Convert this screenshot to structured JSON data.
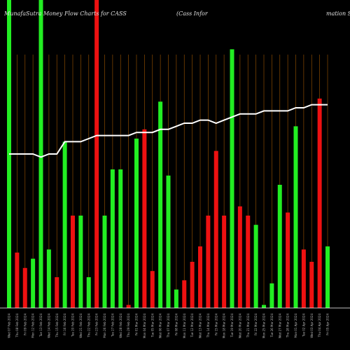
{
  "title_left": "MunafaSutra  Money Flow  Charts for CASS",
  "title_mid": "(Cass Infor",
  "title_right": "mation  S",
  "colors": {
    "background": "#000000",
    "grid": "#8a4a00",
    "up": "#22ee22",
    "down": "#ee1111",
    "line": "#ffffff",
    "baseline": "#ffffff"
  },
  "chart_data": {
    "type": "bar",
    "ylim": [
      0,
      100
    ],
    "bars": [
      {
        "c": "up",
        "v": 100,
        "label": "Wed 07 Feb 2024"
      },
      {
        "c": "down",
        "v": 18,
        "label": "Thu 08 Feb 2024"
      },
      {
        "c": "down",
        "v": 13,
        "label": "Fri 09 Feb 2024"
      },
      {
        "c": "up",
        "v": 16,
        "label": "Mon 12 Feb 2024"
      },
      {
        "c": "up",
        "v": 100,
        "label": "Tue 13 Feb 2024"
      },
      {
        "c": "up",
        "v": 19,
        "label": "Wed 14 Feb 2024"
      },
      {
        "c": "down",
        "v": 10,
        "label": "Thu 15 Feb 2024"
      },
      {
        "c": "up",
        "v": 54,
        "label": "Fri 16 Feb 2024"
      },
      {
        "c": "down",
        "v": 30,
        "label": "Tue 20 Feb 2024"
      },
      {
        "c": "up",
        "v": 30,
        "label": "Wed 21 Feb 2024"
      },
      {
        "c": "up",
        "v": 10,
        "label": "Thu 22 Feb 2024"
      },
      {
        "c": "down",
        "v": 100,
        "label": "Fri 23 Feb 2024"
      },
      {
        "c": "up",
        "v": 30,
        "label": "Mon 26 Feb 2024"
      },
      {
        "c": "up",
        "v": 45,
        "label": "Tue 27 Feb 2024"
      },
      {
        "c": "up",
        "v": 45,
        "label": "Wed 28 Feb 2024"
      },
      {
        "c": "down",
        "v": 1,
        "label": "Thu 29 Feb 2024"
      },
      {
        "c": "up",
        "v": 55,
        "label": "Fri 01 Mar 2024"
      },
      {
        "c": "down",
        "v": 58,
        "label": "Mon 04 Mar 2024"
      },
      {
        "c": "down",
        "v": 12,
        "label": "Tue 05 Mar 2024"
      },
      {
        "c": "up",
        "v": 67,
        "label": "Wed 06 Mar 2024"
      },
      {
        "c": "up",
        "v": 43,
        "label": "Thu 07 Mar 2024"
      },
      {
        "c": "up",
        "v": 6,
        "label": "Fri 08 Mar 2024"
      },
      {
        "c": "down",
        "v": 9,
        "label": "Mon 11 Mar 2024"
      },
      {
        "c": "down",
        "v": 15,
        "label": "Tue 12 Mar 2024"
      },
      {
        "c": "down",
        "v": 20,
        "label": "Wed 13 Mar 2024"
      },
      {
        "c": "down",
        "v": 30,
        "label": "Thu 14 Mar 2024"
      },
      {
        "c": "down",
        "v": 51,
        "label": "Fri 15 Mar 2024"
      },
      {
        "c": "down",
        "v": 30,
        "label": "Mon 18 Mar 2024"
      },
      {
        "c": "up",
        "v": 84,
        "label": "Tue 19 Mar 2024"
      },
      {
        "c": "down",
        "v": 33,
        "label": "Wed 20 Mar 2024"
      },
      {
        "c": "down",
        "v": 30,
        "label": "Thu 21 Mar 2024"
      },
      {
        "c": "up",
        "v": 27,
        "label": "Fri 22 Mar 2024"
      },
      {
        "c": "up",
        "v": 1,
        "label": "Mon 25 Mar 2024"
      },
      {
        "c": "up",
        "v": 8,
        "label": "Tue 26 Mar 2024"
      },
      {
        "c": "up",
        "v": 40,
        "label": "Wed 27 Mar 2024"
      },
      {
        "c": "down",
        "v": 31,
        "label": "Thu 28 Mar 2024"
      },
      {
        "c": "up",
        "v": 59,
        "label": "Mon 01 Apr 2024"
      },
      {
        "c": "down",
        "v": 19,
        "label": "Tue 02 Apr 2024"
      },
      {
        "c": "down",
        "v": 15,
        "label": "Wed 03 Apr 2024"
      },
      {
        "c": "down",
        "v": 68,
        "label": "Thu 04 Apr 2024"
      },
      {
        "c": "up",
        "v": 20,
        "label": "Fri 05 Apr 2024"
      }
    ],
    "line": [
      50,
      50,
      50,
      50,
      49,
      50,
      50,
      54,
      54,
      54,
      55,
      56,
      56,
      56,
      56,
      56,
      57,
      57,
      57,
      58,
      58,
      59,
      60,
      60,
      61,
      61,
      60,
      61,
      62,
      63,
      63,
      63,
      64,
      64,
      64,
      64,
      65,
      65,
      66,
      66,
      66
    ]
  }
}
